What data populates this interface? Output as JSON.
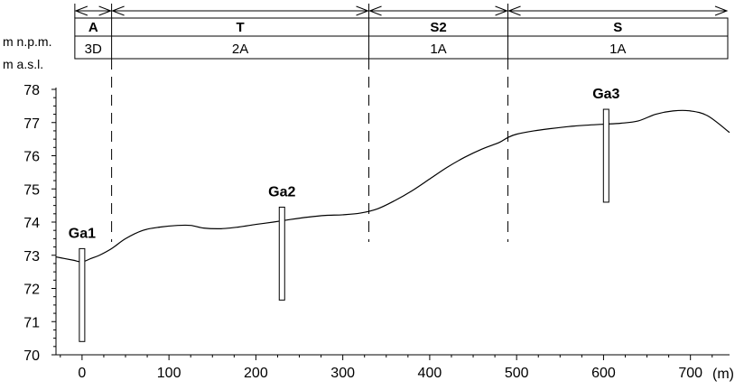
{
  "chart_data": {
    "type": "line",
    "header_label_1": "m n.p.m.",
    "header_label_2": "m a.s.l.",
    "x_unit_label": "(m)",
    "xlim": [
      -30,
      745
    ],
    "ylim": [
      70,
      78
    ],
    "x_ticks": [
      0,
      100,
      200,
      300,
      400,
      500,
      600,
      700
    ],
    "x_tick_labels": [
      "0",
      "100",
      "200",
      "300",
      "400",
      "500",
      "600",
      "700"
    ],
    "y_ticks": [
      70,
      71,
      72,
      73,
      74,
      75,
      76,
      77,
      78
    ],
    "y_tick_labels": [
      "70",
      "71",
      "72",
      "73",
      "74",
      "75",
      "76",
      "77",
      "78"
    ],
    "zones": [
      {
        "name": "A",
        "class": "3D",
        "x_start": 0,
        "x_end": 34
      },
      {
        "name": "T",
        "class": "2A",
        "x_start": 34,
        "x_end": 330
      },
      {
        "name": "S2",
        "class": "1A",
        "x_start": 330,
        "x_end": 490
      },
      {
        "name": "S",
        "class": "1A",
        "x_start": 490,
        "x_end": 745
      }
    ],
    "boundaries": [
      34,
      330,
      490
    ],
    "terrain": {
      "x": [
        -30,
        -20,
        -10,
        0,
        10,
        20,
        34,
        50,
        70,
        90,
        110,
        125,
        140,
        160,
        180,
        200,
        220,
        240,
        260,
        280,
        300,
        320,
        340,
        360,
        380,
        400,
        420,
        440,
        460,
        480,
        490,
        500,
        520,
        540,
        560,
        580,
        600,
        620,
        640,
        660,
        680,
        700,
        720,
        745
      ],
      "y": [
        72.95,
        72.9,
        72.85,
        72.8,
        72.9,
        73.0,
        73.2,
        73.5,
        73.75,
        73.85,
        73.9,
        73.9,
        73.82,
        73.8,
        73.85,
        73.93,
        74.0,
        74.08,
        74.15,
        74.2,
        74.22,
        74.27,
        74.4,
        74.65,
        74.95,
        75.3,
        75.65,
        75.95,
        76.2,
        76.4,
        76.55,
        76.65,
        76.75,
        76.82,
        76.88,
        76.92,
        76.95,
        76.98,
        77.05,
        77.25,
        77.35,
        77.35,
        77.2,
        76.7
      ]
    },
    "wells": [
      {
        "name": "Ga1",
        "x": 0,
        "top": 73.2,
        "bottom": 70.4
      },
      {
        "name": "Ga2",
        "x": 230,
        "top": 74.45,
        "bottom": 71.65
      },
      {
        "name": "Ga3",
        "x": 603,
        "top": 77.4,
        "bottom": 74.6
      }
    ]
  }
}
